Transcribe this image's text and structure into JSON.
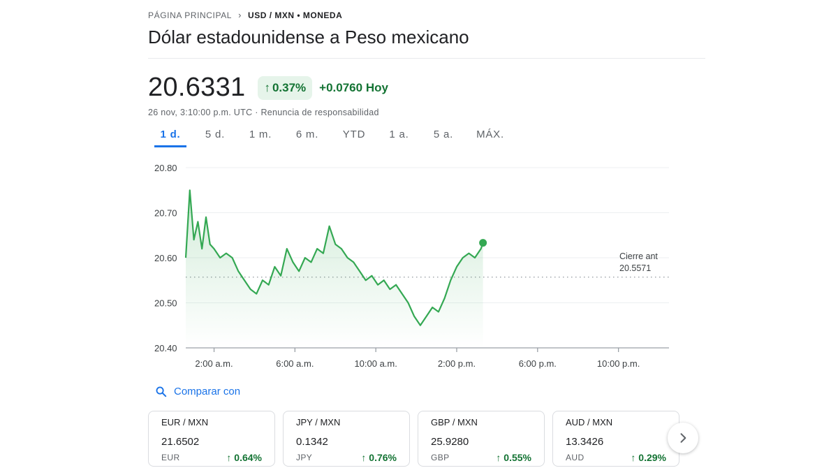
{
  "breadcrumb": {
    "home": "PÁGINA PRINCIPAL",
    "current": "USD / MXN • MONEDA"
  },
  "title": "Dólar estadounidense a Peso mexicano",
  "quote": {
    "price": "20.6331",
    "percent_change": "0.37%",
    "abs_change": "+0.0760 Hoy",
    "timestamp": "26 nov, 3:10:00 p.m. UTC",
    "disclaimer": "Renuncia de responsabilidad"
  },
  "tabs": [
    {
      "label": "1 d.",
      "active": true
    },
    {
      "label": "5 d.",
      "active": false
    },
    {
      "label": "1 m.",
      "active": false
    },
    {
      "label": "6 m.",
      "active": false
    },
    {
      "label": "YTD",
      "active": false
    },
    {
      "label": "1 a.",
      "active": false
    },
    {
      "label": "5 a.",
      "active": false
    },
    {
      "label": "MÁX.",
      "active": false
    }
  ],
  "chart_data": {
    "type": "line",
    "x_unit": "hour of day",
    "x_range": [
      0.6,
      24.5
    ],
    "ylim": [
      20.4,
      20.8
    ],
    "y_ticks": [
      "20.80",
      "20.70",
      "20.60",
      "20.50",
      "20.40"
    ],
    "y_tick_values": [
      20.8,
      20.7,
      20.6,
      20.5,
      20.4
    ],
    "x_ticks": [
      "2:00 a.m.",
      "6:00 a.m.",
      "10:00 a.m.",
      "2:00 p.m.",
      "6:00 p.m.",
      "10:00 p.m."
    ],
    "x_tick_values": [
      2,
      6,
      10,
      14,
      18,
      22
    ],
    "previous_close_label": "Cierre ant",
    "previous_close": 20.5571,
    "previous_close_text": "20.5571",
    "line_color": "#34a853",
    "series": [
      {
        "x": [
          0.6,
          0.8,
          1.0,
          1.2,
          1.4,
          1.6,
          1.8,
          2.0,
          2.3,
          2.6,
          2.9,
          3.2,
          3.5,
          3.8,
          4.1,
          4.4,
          4.7,
          5.0,
          5.3,
          5.6,
          5.9,
          6.2,
          6.5,
          6.8,
          7.1,
          7.4,
          7.7,
          8.0,
          8.3,
          8.6,
          8.9,
          9.2,
          9.5,
          9.8,
          10.1,
          10.4,
          10.7,
          11.0,
          11.3,
          11.6,
          11.9,
          12.2,
          12.5,
          12.8,
          13.1,
          13.4,
          13.7,
          14.0,
          14.3,
          14.6,
          14.9,
          15.2,
          15.3
        ],
        "y": [
          20.6,
          20.75,
          20.64,
          20.68,
          20.62,
          20.69,
          20.63,
          20.62,
          20.6,
          20.61,
          20.6,
          20.57,
          20.55,
          20.53,
          20.52,
          20.55,
          20.54,
          20.58,
          20.56,
          20.62,
          20.59,
          20.57,
          20.6,
          20.59,
          20.62,
          20.61,
          20.67,
          20.63,
          20.62,
          20.6,
          20.59,
          20.57,
          20.55,
          20.56,
          20.54,
          20.55,
          20.53,
          20.54,
          20.52,
          20.5,
          20.47,
          20.45,
          20.47,
          20.49,
          20.48,
          20.51,
          20.55,
          20.58,
          20.6,
          20.61,
          20.6,
          20.62,
          20.6331
        ]
      }
    ]
  },
  "compare": {
    "label": "Comparar con",
    "icon": "search-icon"
  },
  "cards": [
    {
      "pair": "EUR / MXN",
      "value": "21.6502",
      "currency": "EUR",
      "change": "0.64%"
    },
    {
      "pair": "JPY / MXN",
      "value": "0.1342",
      "currency": "JPY",
      "change": "0.76%"
    },
    {
      "pair": "GBP / MXN",
      "value": "25.9280",
      "currency": "GBP",
      "change": "0.55%"
    },
    {
      "pair": "AUD / MXN",
      "value": "13.3426",
      "currency": "AUD",
      "change": "0.29%"
    }
  ],
  "arrow_glyph": "↑",
  "chevron_glyph": "›"
}
